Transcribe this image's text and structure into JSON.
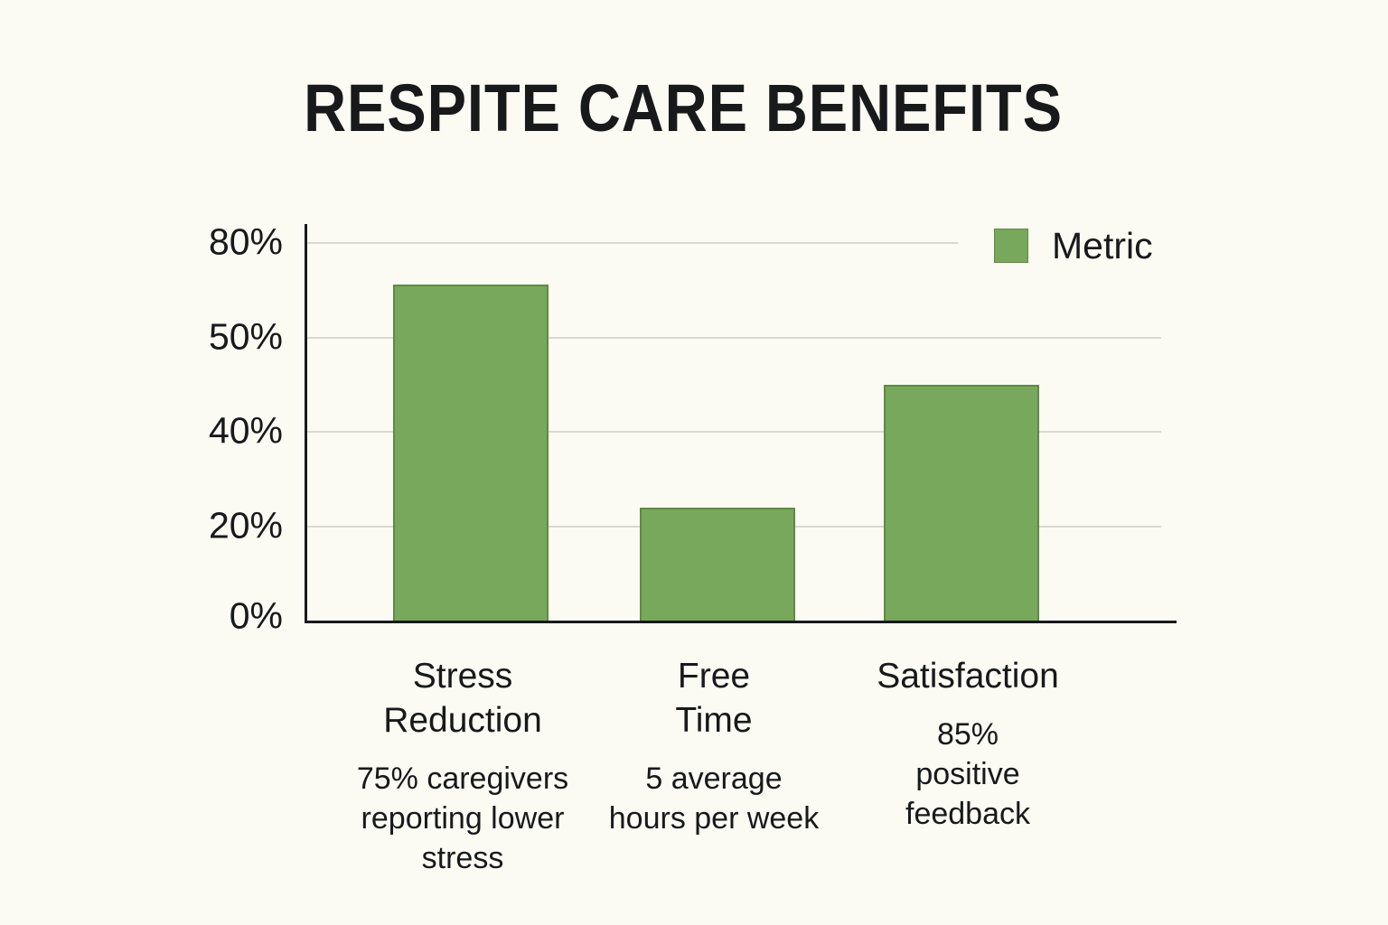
{
  "title": "RESPITE CARE BENEFITS",
  "legend": {
    "label": "Metric"
  },
  "colors": {
    "background": "#fbfaf3",
    "bar": "#78a85b",
    "bar_border": "#5f8a44",
    "text": "#17191b",
    "gridline": "#d8d8d2",
    "axis": "#17191b"
  },
  "y_axis_ticks": [
    "80%",
    "50%",
    "40%",
    "20%",
    "0%"
  ],
  "categories": [
    {
      "label_lines": [
        "Stress",
        "Reduction"
      ],
      "annotation_lines": [
        "75% caregivers",
        "reporting lower",
        "stress"
      ]
    },
    {
      "label_lines": [
        "Free",
        "Time"
      ],
      "annotation_lines": [
        "5 average",
        "hours per week"
      ]
    },
    {
      "label_lines": [
        "Satisfaction"
      ],
      "annotation_lines": [
        "85%",
        "positive",
        "feedback"
      ]
    }
  ],
  "chart_data": {
    "type": "bar",
    "title": "RESPITE CARE BENEFITS",
    "categories": [
      "Stress Reduction",
      "Free Time",
      "Satisfaction"
    ],
    "category_annotations": [
      "75% caregivers reporting lower stress",
      "5 average hours per week",
      "85% positive feedback"
    ],
    "series": [
      {
        "name": "Metric",
        "stated_values": [
          "75%",
          "5 hours per week",
          "85%"
        ],
        "bar_heights_pct_of_axis_as_drawn": [
          89,
          30,
          62.5
        ]
      }
    ],
    "y_tick_labels_top_to_bottom": [
      "80%",
      "50%",
      "40%",
      "20%",
      "0%"
    ],
    "axis_note": "tick labels are non-linear but gridlines evenly spaced as drawn",
    "ylabel": "",
    "xlabel": "",
    "grid": true,
    "legend_position": "top-right",
    "bar_color": "#78a85b"
  }
}
